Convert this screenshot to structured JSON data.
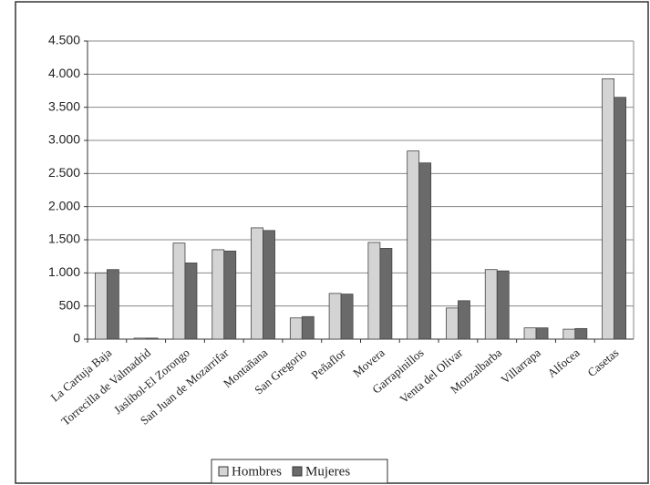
{
  "chart_data": {
    "type": "bar",
    "categories": [
      "La Cartuja Baja",
      "Torrecilla de Valmadrid",
      "Jaslibol-El Zorongo",
      "San Juan de Mozarrifar",
      "Montañana",
      "San Gregorio",
      "Peñaflor",
      "Movera",
      "Garrapinillos",
      "Venta del Olivar",
      "Monzalbarba",
      "Villarrapa",
      "Alfocea",
      "Casetas"
    ],
    "series": [
      {
        "name": "Hombres",
        "color": "#d4d4d4",
        "values": [
          1000,
          15,
          1450,
          1350,
          1680,
          320,
          690,
          1460,
          2840,
          470,
          1050,
          170,
          150,
          3930
        ]
      },
      {
        "name": "Mujeres",
        "color": "#6a6a6a",
        "values": [
          1050,
          15,
          1150,
          1330,
          1640,
          340,
          680,
          1370,
          2660,
          580,
          1030,
          170,
          160,
          3650
        ]
      }
    ],
    "ylim": [
      0,
      4500
    ],
    "yticks": [
      0,
      500,
      {
        "value": 1000,
        "label": "1.000"
      },
      {
        "value": 1500,
        "label": "1.500"
      },
      {
        "value": 2000,
        "label": "2.000"
      },
      {
        "value": 2500,
        "label": "2.500"
      },
      {
        "value": 3000,
        "label": "3.000"
      },
      {
        "value": 3500,
        "label": "3.500"
      },
      {
        "value": 4000,
        "label": "4.000"
      },
      {
        "value": 4500,
        "label": "4.500"
      }
    ],
    "grid": true,
    "legend": "bottom"
  }
}
